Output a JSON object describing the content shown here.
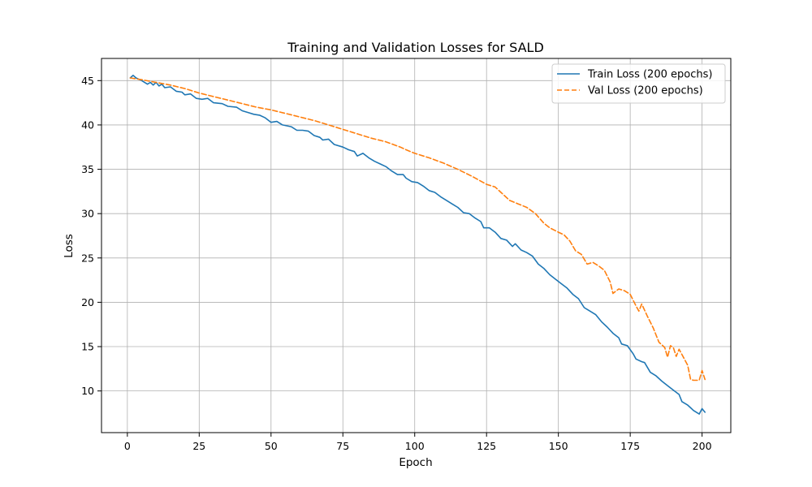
{
  "chart_data": {
    "type": "line",
    "title": "Training and Validation Losses for SALD",
    "xlabel": "Epoch",
    "ylabel": "Loss",
    "xlim": [
      -9,
      210
    ],
    "ylim": [
      5.3,
      47.5
    ],
    "xticks": [
      0,
      25,
      50,
      75,
      100,
      125,
      150,
      175,
      200
    ],
    "yticks": [
      10,
      15,
      20,
      25,
      30,
      35,
      40,
      45
    ],
    "grid": true,
    "legend_position": "top-right",
    "series": [
      {
        "name": "Train Loss (200 epochs)",
        "color": "#1f77b4",
        "dash": "solid",
        "points": [
          [
            1,
            45.3
          ],
          [
            2,
            45.6
          ],
          [
            3,
            45.3
          ],
          [
            5,
            45.0
          ],
          [
            7,
            44.6
          ],
          [
            8,
            44.8
          ],
          [
            9,
            44.5
          ],
          [
            10,
            44.8
          ],
          [
            11,
            44.4
          ],
          [
            12,
            44.6
          ],
          [
            13,
            44.2
          ],
          [
            15,
            44.3
          ],
          [
            17,
            43.8
          ],
          [
            19,
            43.7
          ],
          [
            20,
            43.4
          ],
          [
            22,
            43.5
          ],
          [
            24,
            43.0
          ],
          [
            26,
            42.9
          ],
          [
            28,
            43.0
          ],
          [
            30,
            42.5
          ],
          [
            33,
            42.4
          ],
          [
            35,
            42.1
          ],
          [
            38,
            42.0
          ],
          [
            40,
            41.6
          ],
          [
            42,
            41.4
          ],
          [
            44,
            41.2
          ],
          [
            46,
            41.1
          ],
          [
            48,
            40.8
          ],
          [
            50,
            40.3
          ],
          [
            52,
            40.4
          ],
          [
            54,
            40.0
          ],
          [
            57,
            39.8
          ],
          [
            59,
            39.4
          ],
          [
            61,
            39.4
          ],
          [
            63,
            39.3
          ],
          [
            65,
            38.8
          ],
          [
            67,
            38.6
          ],
          [
            68,
            38.3
          ],
          [
            70,
            38.4
          ],
          [
            72,
            37.8
          ],
          [
            75,
            37.5
          ],
          [
            77,
            37.2
          ],
          [
            79,
            37.0
          ],
          [
            80,
            36.5
          ],
          [
            82,
            36.8
          ],
          [
            84,
            36.3
          ],
          [
            86,
            35.9
          ],
          [
            88,
            35.6
          ],
          [
            90,
            35.3
          ],
          [
            92,
            34.8
          ],
          [
            94,
            34.4
          ],
          [
            96,
            34.4
          ],
          [
            97,
            34.0
          ],
          [
            99,
            33.6
          ],
          [
            101,
            33.5
          ],
          [
            103,
            33.1
          ],
          [
            105,
            32.6
          ],
          [
            107,
            32.4
          ],
          [
            109,
            31.9
          ],
          [
            111,
            31.5
          ],
          [
            113,
            31.1
          ],
          [
            115,
            30.7
          ],
          [
            117,
            30.1
          ],
          [
            119,
            30.0
          ],
          [
            121,
            29.5
          ],
          [
            123,
            29.1
          ],
          [
            124,
            28.4
          ],
          [
            126,
            28.4
          ],
          [
            128,
            27.9
          ],
          [
            130,
            27.2
          ],
          [
            132,
            27.0
          ],
          [
            134,
            26.3
          ],
          [
            135,
            26.6
          ],
          [
            137,
            25.9
          ],
          [
            139,
            25.6
          ],
          [
            141,
            25.2
          ],
          [
            143,
            24.3
          ],
          [
            145,
            23.8
          ],
          [
            147,
            23.1
          ],
          [
            149,
            22.6
          ],
          [
            151,
            22.1
          ],
          [
            153,
            21.6
          ],
          [
            155,
            20.9
          ],
          [
            157,
            20.4
          ],
          [
            159,
            19.4
          ],
          [
            161,
            19.0
          ],
          [
            163,
            18.6
          ],
          [
            165,
            17.8
          ],
          [
            167,
            17.2
          ],
          [
            169,
            16.5
          ],
          [
            171,
            16.0
          ],
          [
            172,
            15.3
          ],
          [
            174,
            15.1
          ],
          [
            176,
            14.2
          ],
          [
            177,
            13.6
          ],
          [
            179,
            13.3
          ],
          [
            180,
            13.2
          ],
          [
            182,
            12.1
          ],
          [
            184,
            11.7
          ],
          [
            186,
            11.1
          ],
          [
            188,
            10.6
          ],
          [
            190,
            10.1
          ],
          [
            192,
            9.6
          ],
          [
            193,
            8.8
          ],
          [
            195,
            8.4
          ],
          [
            196,
            8.1
          ],
          [
            197,
            7.8
          ],
          [
            199,
            7.4
          ],
          [
            200,
            8.0
          ],
          [
            201,
            7.6
          ]
        ]
      },
      {
        "name": "Val Loss (200 epochs)",
        "color": "#ff7f0e",
        "dash": "dashed",
        "points": [
          [
            1,
            45.3
          ],
          [
            5,
            45.1
          ],
          [
            10,
            44.8
          ],
          [
            15,
            44.5
          ],
          [
            20,
            44.1
          ],
          [
            25,
            43.6
          ],
          [
            30,
            43.2
          ],
          [
            35,
            42.8
          ],
          [
            40,
            42.4
          ],
          [
            45,
            42.0
          ],
          [
            50,
            41.7
          ],
          [
            55,
            41.3
          ],
          [
            60,
            40.9
          ],
          [
            65,
            40.5
          ],
          [
            70,
            40.0
          ],
          [
            75,
            39.5
          ],
          [
            80,
            39.0
          ],
          [
            85,
            38.5
          ],
          [
            90,
            38.1
          ],
          [
            95,
            37.5
          ],
          [
            97,
            37.2
          ],
          [
            100,
            36.8
          ],
          [
            105,
            36.3
          ],
          [
            110,
            35.7
          ],
          [
            115,
            35.0
          ],
          [
            120,
            34.2
          ],
          [
            125,
            33.3
          ],
          [
            128,
            33.0
          ],
          [
            130,
            32.4
          ],
          [
            133,
            31.5
          ],
          [
            136,
            31.1
          ],
          [
            139,
            30.7
          ],
          [
            142,
            30.0
          ],
          [
            145,
            28.9
          ],
          [
            147,
            28.4
          ],
          [
            150,
            27.9
          ],
          [
            152,
            27.6
          ],
          [
            154,
            26.9
          ],
          [
            156,
            25.8
          ],
          [
            158,
            25.4
          ],
          [
            160,
            24.3
          ],
          [
            162,
            24.5
          ],
          [
            164,
            24.1
          ],
          [
            166,
            23.6
          ],
          [
            168,
            22.3
          ],
          [
            169,
            21.0
          ],
          [
            171,
            21.5
          ],
          [
            173,
            21.3
          ],
          [
            175,
            20.9
          ],
          [
            177,
            19.6
          ],
          [
            178,
            19.0
          ],
          [
            179,
            19.8
          ],
          [
            181,
            18.4
          ],
          [
            183,
            17.1
          ],
          [
            185,
            15.5
          ],
          [
            187,
            14.9
          ],
          [
            188,
            13.8
          ],
          [
            189,
            15.1
          ],
          [
            190,
            14.9
          ],
          [
            191,
            13.9
          ],
          [
            192,
            14.7
          ],
          [
            194,
            13.5
          ],
          [
            195,
            12.9
          ],
          [
            196,
            11.3
          ],
          [
            197,
            11.2
          ],
          [
            199,
            11.2
          ],
          [
            200,
            12.3
          ],
          [
            201,
            11.3
          ]
        ]
      }
    ]
  }
}
